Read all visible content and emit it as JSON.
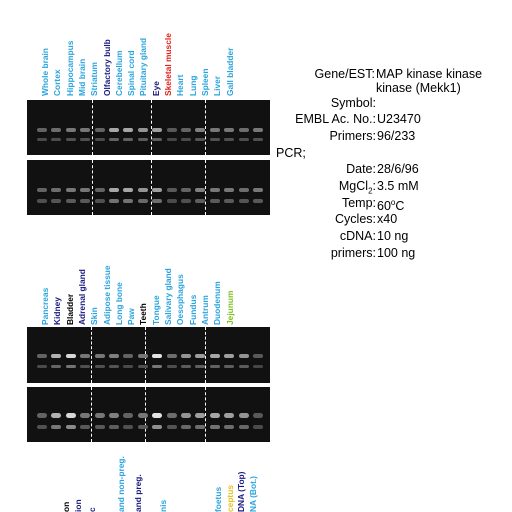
{
  "colors": {
    "label_blue": "#2aa4dc",
    "label_navy": "#1a1a80",
    "label_black": "#000000",
    "label_red": "#e0201a",
    "label_green": "#80c020",
    "label_yellow": "#e8c020",
    "gel_background": "#111111"
  },
  "top_lanes": [
    {
      "label": "Whole brain",
      "color": "blue"
    },
    {
      "label": "Cortex",
      "color": "blue"
    },
    {
      "label": "Hippocampus",
      "color": "blue"
    },
    {
      "label": "Mid brain",
      "color": "blue"
    },
    {
      "label": "Striatum",
      "color": "blue"
    },
    {
      "label": "Olfactory bulb",
      "color": "navy"
    },
    {
      "label": "Cerebellum",
      "color": "blue"
    },
    {
      "label": "Spinal cord",
      "color": "blue"
    },
    {
      "label": "Pituitary gland",
      "color": "blue"
    },
    {
      "label": "Eye",
      "color": "navy"
    },
    {
      "label": "Skeletal muscle",
      "color": "red"
    },
    {
      "label": "Heart",
      "color": "blue"
    },
    {
      "label": "Lung",
      "color": "blue"
    },
    {
      "label": "Spleen",
      "color": "blue"
    },
    {
      "label": "Liver",
      "color": "blue"
    },
    {
      "label": "Gall bladder",
      "color": "blue"
    }
  ],
  "bottom_lanes": [
    {
      "label": "Pancreas",
      "color": "blue"
    },
    {
      "label": "Kidney",
      "color": "navy"
    },
    {
      "label": "Bladder",
      "color": "black"
    },
    {
      "label": "Adrenal gland",
      "color": "navy"
    },
    {
      "label": "Skin",
      "color": "blue"
    },
    {
      "label": "Adipose tissue",
      "color": "blue"
    },
    {
      "label": "Long bone",
      "color": "blue"
    },
    {
      "label": "Paw",
      "color": "blue"
    },
    {
      "label": "Teeth",
      "color": "black"
    },
    {
      "label": "Tongue",
      "color": "blue"
    },
    {
      "label": "Salivary gland",
      "color": "blue"
    },
    {
      "label": "Oesophagus",
      "color": "blue"
    },
    {
      "label": "Fundus",
      "color": "blue"
    },
    {
      "label": "Antrum",
      "color": "blue"
    },
    {
      "label": "Duodenum",
      "color": "blue"
    },
    {
      "label": "Jejunum",
      "color": "green"
    }
  ],
  "bottom_cut_labels": [
    {
      "label": "on",
      "color": "black"
    },
    {
      "label": "ion",
      "color": "navy"
    },
    {
      "label": "c",
      "color": "navy"
    },
    {
      "label": "and non-preg.",
      "color": "blue"
    },
    {
      "label": "and preg.",
      "color": "navy"
    },
    {
      "label": "nis",
      "color": "blue"
    },
    {
      "label": "foetus",
      "color": "blue"
    },
    {
      "label": "ceptus",
      "color": "yellow"
    },
    {
      "label": "DNA (Top)",
      "color": "navy"
    },
    {
      "label": "NA (Bot.)",
      "color": "blue"
    }
  ],
  "info": {
    "gene_est_key": "Gene/EST:",
    "gene_est_value_line1": "MAP kinase kinase",
    "gene_est_value_line2": "kinase (Mekk1)",
    "symbol_key": "Symbol:",
    "symbol_value": "",
    "embl_key": "EMBL Ac. No.:",
    "embl_value": "U23470",
    "primers_key": "Primers:",
    "primers_value": "96/233",
    "pcr_heading": "PCR;",
    "date_key": "Date:",
    "date_value": "28/6/96",
    "mgcl_key_prefix": "MgCl",
    "mgcl_key_sub": "2",
    "mgcl_key_suffix": ":",
    "mgcl_value": "3.5 mM",
    "temp_key": "Temp:",
    "temp_value_prefix": "60",
    "temp_value_sup": "o",
    "temp_value_suffix": "C",
    "cycles_key": "Cycles:",
    "cycles_value": "x40",
    "cdna_key": "cDNA:",
    "cdna_value": "10 ng",
    "primers2_key": "primers:",
    "primers2_value": "100 ng"
  }
}
